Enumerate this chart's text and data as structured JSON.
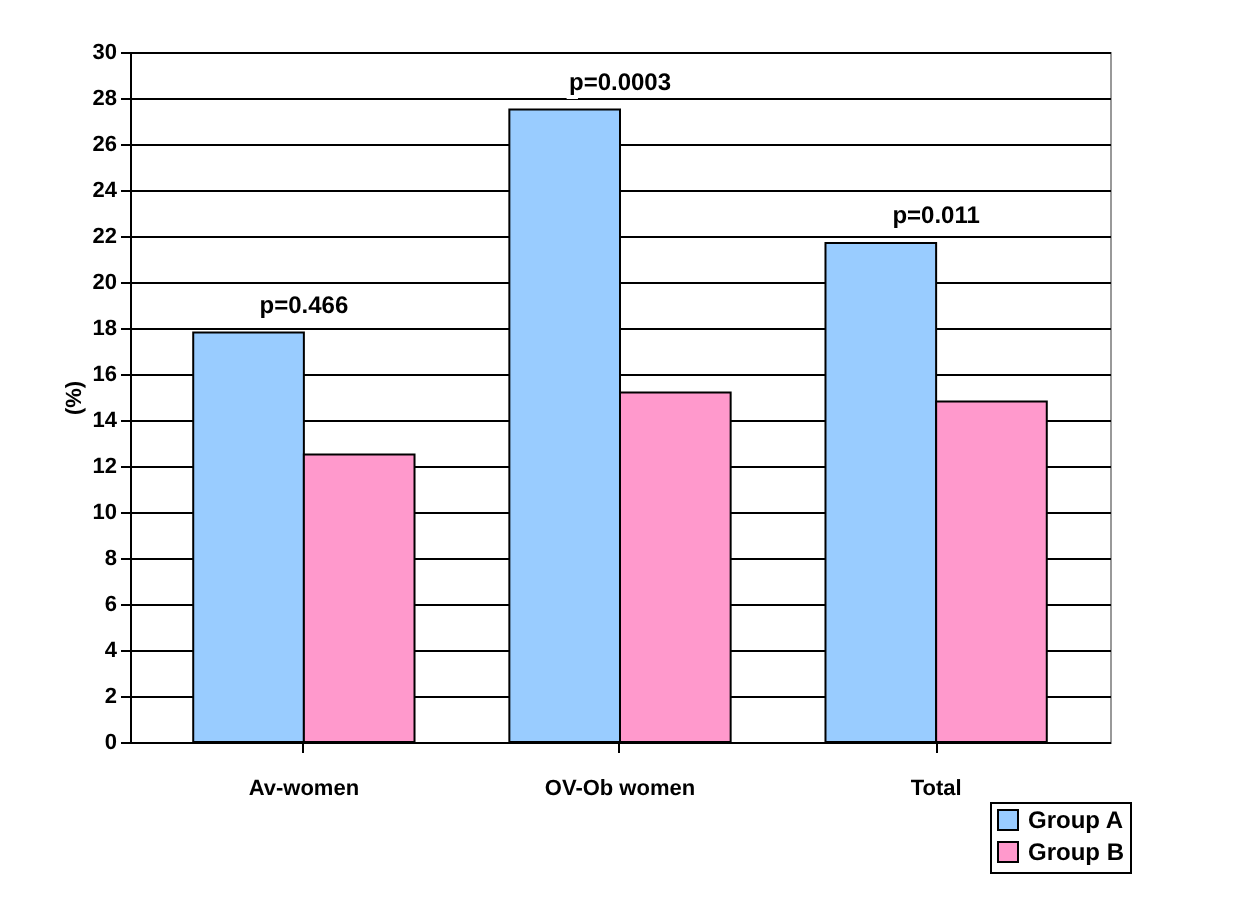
{
  "chart_data": {
    "type": "bar",
    "ylabel": "(%)",
    "categories": [
      "Av-women",
      "OV-Ob women",
      "Total"
    ],
    "series": [
      {
        "name": "Group A",
        "color": "#99ccff",
        "values": [
          17.8,
          27.5,
          21.7
        ]
      },
      {
        "name": "Group B",
        "color": "#ff99cc",
        "values": [
          12.5,
          15.2,
          14.8
        ]
      }
    ],
    "ylim": [
      0,
      30
    ],
    "yticks": [
      0,
      2,
      4,
      6,
      8,
      10,
      12,
      14,
      16,
      18,
      20,
      22,
      24,
      26,
      28,
      30
    ],
    "grid": "y",
    "legend": "bottom right",
    "annotations": [
      "p=0.466",
      "p=0.0003",
      "p=0.011"
    ]
  }
}
